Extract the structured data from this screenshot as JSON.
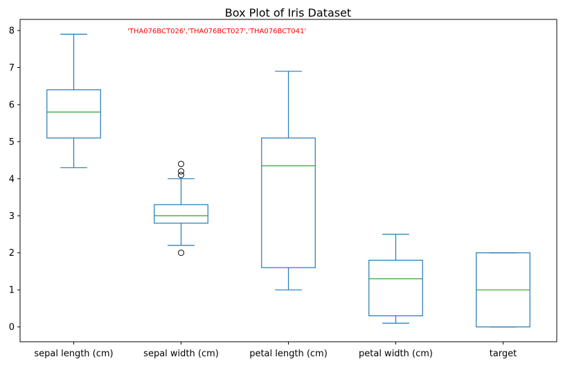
{
  "chart_data": {
    "type": "box",
    "title": "Box Plot of Iris Dataset",
    "xlabel": "",
    "ylabel": "",
    "ylim": [
      -0.4,
      8.3
    ],
    "yticks": [
      0,
      1,
      2,
      3,
      4,
      5,
      6,
      7,
      8
    ],
    "grid": false,
    "annotation": "'THA076BCT026','THA076BCT027','THA076BCT041'",
    "colors": {
      "box": "#1f77b4",
      "median": "#2ca02c",
      "annotation": "#ff0000"
    },
    "categories": [
      "sepal length (cm)",
      "sepal width (cm)",
      "petal length (cm)",
      "petal width (cm)",
      "target"
    ],
    "boxes": [
      {
        "category": "sepal length (cm)",
        "whisker_low": 4.3,
        "q1": 5.1,
        "median": 5.8,
        "q3": 6.4,
        "whisker_high": 7.9,
        "fliers": []
      },
      {
        "category": "sepal width (cm)",
        "whisker_low": 2.2,
        "q1": 2.8,
        "median": 3.0,
        "q3": 3.3,
        "whisker_high": 4.0,
        "fliers": [
          2.0,
          4.1,
          4.2,
          4.4
        ]
      },
      {
        "category": "petal length (cm)",
        "whisker_low": 1.0,
        "q1": 1.6,
        "median": 4.35,
        "q3": 5.1,
        "whisker_high": 6.9,
        "fliers": []
      },
      {
        "category": "petal width (cm)",
        "whisker_low": 0.1,
        "q1": 0.3,
        "median": 1.3,
        "q3": 1.8,
        "whisker_high": 2.5,
        "fliers": []
      },
      {
        "category": "target",
        "whisker_low": 0.0,
        "q1": 0.0,
        "median": 1.0,
        "q3": 2.0,
        "whisker_high": 2.0,
        "fliers": []
      }
    ]
  }
}
